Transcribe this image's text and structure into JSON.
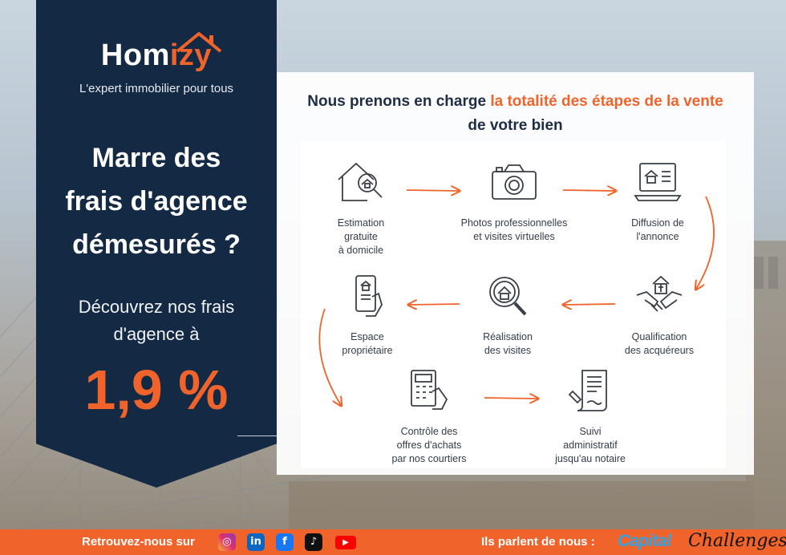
{
  "brand": {
    "name_part1": "Hom",
    "name_part2": "izy",
    "tagline": "L'expert immobilier pour tous"
  },
  "banner": {
    "headline_line1": "Marre des",
    "headline_line2": "frais d'agence",
    "headline_line3": "démesurés ?",
    "sub_line1": "Découvrez nos frais",
    "sub_line2": "d'agence à",
    "rate": "1,9 %"
  },
  "panel": {
    "heading_part1": "Nous prenons en charge ",
    "heading_accent": "la totalité des étapes de la vente",
    "heading_part2": "de votre bien",
    "steps": [
      {
        "icon": "house-magnifier-icon",
        "line1": "Estimation",
        "line2": "gratuite",
        "line3": "à domicile"
      },
      {
        "icon": "camera-icon",
        "line1": "Photos professionnelles",
        "line2": "et visites virtuelles",
        "line3": ""
      },
      {
        "icon": "laptop-listing-icon",
        "line1": "Diffusion de",
        "line2": "l'annonce",
        "line3": ""
      },
      {
        "icon": "handshake-house-icon",
        "line1": "Qualification",
        "line2": "des acquéreurs",
        "line3": ""
      },
      {
        "icon": "house-search-icon",
        "line1": "Réalisation",
        "line2": "des visites",
        "line3": ""
      },
      {
        "icon": "phone-hand-icon",
        "line1": "Espace",
        "line2": "propriétaire",
        "line3": ""
      },
      {
        "icon": "calculator-hand-icon",
        "line1": "Contrôle des",
        "line2": "offres d'achats",
        "line3": "par nos courtiers"
      },
      {
        "icon": "document-pen-icon",
        "line1": "Suivi",
        "line2": "administratif",
        "line3": "jusqu'au notaire"
      }
    ]
  },
  "footer": {
    "follow_label": "Retrouvez-nous sur",
    "press_label": "Ils parlent de nous :",
    "social": [
      {
        "name": "instagram-icon",
        "glyph": "◎"
      },
      {
        "name": "linkedin-icon",
        "glyph": "in"
      },
      {
        "name": "facebook-icon",
        "glyph": "f"
      },
      {
        "name": "tiktok-icon",
        "glyph": "♪"
      },
      {
        "name": "youtube-icon",
        "glyph": "▶"
      }
    ],
    "press_1": "Capital",
    "press_2": "Challenges"
  },
  "colors": {
    "navy": "#132944",
    "orange": "#f0642c"
  }
}
